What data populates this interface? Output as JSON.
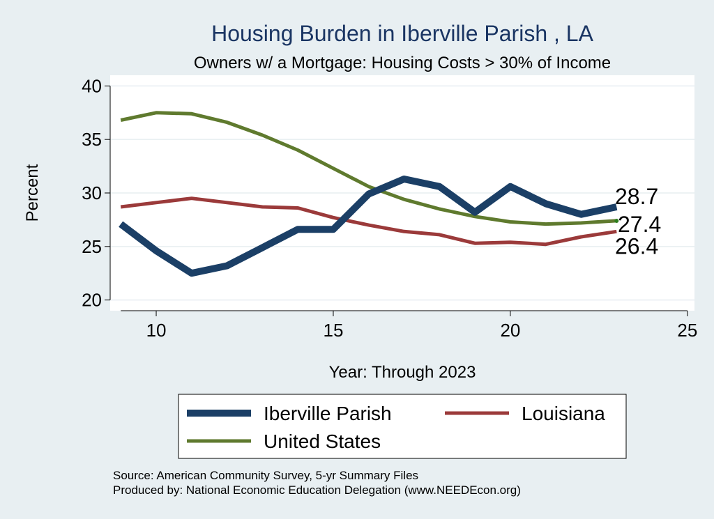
{
  "chart_data": {
    "type": "line",
    "title": "Housing Burden in Iberville Parish , LA",
    "subtitle": "Owners w/ a Mortgage: Housing Costs > 30% of Income",
    "xlabel": "Year: Through 2023",
    "ylabel": "Percent",
    "xlim": [
      8.7,
      25.2
    ],
    "ylim": [
      19,
      41
    ],
    "xticks": [
      10,
      15,
      20,
      25
    ],
    "yticks": [
      20,
      25,
      30,
      35,
      40
    ],
    "grid": true,
    "legend_position": "bottom",
    "series": [
      {
        "name": "Iberville Parish",
        "color": "#1b3f66",
        "width": 10,
        "x": [
          9,
          10,
          11,
          12,
          13,
          14,
          15,
          16,
          17,
          18,
          19,
          20,
          21,
          22,
          23
        ],
        "values": [
          27.1,
          24.6,
          22.5,
          23.2,
          24.9,
          26.6,
          26.6,
          29.9,
          31.3,
          30.6,
          28.2,
          30.6,
          29.0,
          28.0,
          28.7
        ]
      },
      {
        "name": "Louisiana",
        "color": "#9b3a3a",
        "width": 5,
        "x": [
          9,
          10,
          11,
          12,
          13,
          14,
          15,
          16,
          17,
          18,
          19,
          20,
          21,
          22,
          23
        ],
        "values": [
          28.7,
          29.1,
          29.5,
          29.1,
          28.7,
          28.6,
          27.7,
          27.0,
          26.4,
          26.1,
          25.3,
          25.4,
          25.2,
          25.9,
          26.4
        ]
      },
      {
        "name": "United States",
        "color": "#5f7a2e",
        "width": 5,
        "x": [
          9,
          10,
          11,
          12,
          13,
          14,
          15,
          16,
          17,
          18,
          19,
          20,
          21,
          22,
          23
        ],
        "values": [
          36.8,
          37.5,
          37.4,
          36.6,
          35.4,
          34.0,
          32.3,
          30.6,
          29.4,
          28.5,
          27.8,
          27.3,
          27.1,
          27.2,
          27.4
        ]
      }
    ],
    "end_labels": [
      "28.7",
      "27.4",
      "26.4"
    ],
    "source": "Source: American Community Survey, 5-yr Summary Files",
    "produced_by": "Produced by: National Economic Education Delegation (www.NEEDEcon.org)"
  }
}
